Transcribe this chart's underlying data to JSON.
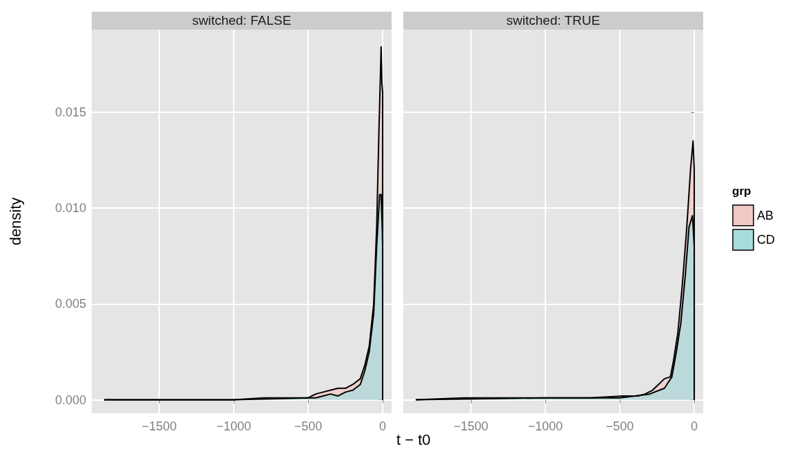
{
  "chart_data": [
    {
      "type": "area",
      "title": "switched: FALSE",
      "xlabel": "t − t0",
      "ylabel": "density",
      "xlim": [
        -1954,
        60
      ],
      "ylim": [
        -0.0007,
        0.0193
      ],
      "xticks": [
        {
          "value": -1500,
          "label": "−1500"
        },
        {
          "value": -1000,
          "label": "−1000"
        },
        {
          "value": -500,
          "label": "−500"
        },
        {
          "value": 0,
          "label": "0"
        }
      ],
      "yticks": [
        {
          "value": 0,
          "label": "0.000"
        },
        {
          "value": 0.005,
          "label": "0.005"
        },
        {
          "value": 0.01,
          "label": "0.010"
        },
        {
          "value": 0.015,
          "label": "0.015"
        }
      ],
      "grid": true,
      "series": [
        {
          "color": "#f1c8c5",
          "x": [
            -1870,
            -1700,
            -1500,
            -1200,
            -1000,
            -800,
            -600,
            -500,
            -450,
            -400,
            -350,
            -300,
            -250,
            -200,
            -150,
            -120,
            -90,
            -60,
            -40,
            -25,
            -10,
            -5,
            0,
            0
          ],
          "values": [
            0,
            0,
            0,
            0,
            0,
            0.0001,
            0.0001,
            0.0001,
            0.0003,
            0.0004,
            0.0005,
            0.0006,
            0.0006,
            0.0008,
            0.0011,
            0.0018,
            0.0028,
            0.005,
            0.009,
            0.014,
            0.0184,
            0.0165,
            0.016,
            0
          ]
        },
        {
          "color": "#a9dcdd",
          "x": [
            -1870,
            -1000,
            -500,
            -450,
            -400,
            -350,
            -300,
            -250,
            -200,
            -150,
            -120,
            -90,
            -60,
            -40,
            -20,
            -10,
            -3,
            0,
            0
          ],
          "values": [
            0,
            0,
            0.0001,
            0.0001,
            0.0002,
            0.0003,
            0.0002,
            0.0004,
            0.0005,
            0.0008,
            0.0015,
            0.0025,
            0.0045,
            0.008,
            0.0107,
            0.0107,
            0.009,
            0.008,
            0
          ]
        }
      ]
    },
    {
      "type": "area",
      "title": "switched: TRUE",
      "legend_title": "grp",
      "legend": "right",
      "tick_labels": "x",
      "xlim": [
        -1954,
        60
      ],
      "ylim": [
        -0.0007,
        0.0193
      ],
      "xticks": [
        {
          "value": -1500,
          "label": "−1500"
        },
        {
          "value": -1000,
          "label": "−1000"
        },
        {
          "value": -500,
          "label": "−500"
        },
        {
          "value": 0,
          "label": "0"
        }
      ],
      "yticks": [
        0,
        0.005,
        0.01,
        0.015
      ],
      "grid": true,
      "series": [
        {
          "name": "AB",
          "color": "#f1c8c5",
          "x": [
            -1870,
            -1550,
            -1400,
            -1000,
            -700,
            -480,
            -380,
            -330,
            -280,
            -240,
            -200,
            -160,
            -140,
            -110,
            -80,
            -50,
            -25,
            -8,
            0,
            0
          ],
          "values": [
            0,
            0.0001,
            0.0001,
            0.0001,
            0.0001,
            0.0002,
            0.0002,
            0.0003,
            0.0005,
            0.0008,
            0.0011,
            0.0012,
            0.002,
            0.0035,
            0.006,
            0.009,
            0.012,
            0.0135,
            0.012,
            0
          ]
        },
        {
          "name": "CD",
          "color": "#a9dcdd",
          "x": [
            -1870,
            -1000,
            -500,
            -300,
            -200,
            -150,
            -120,
            -90,
            -60,
            -35,
            -12,
            0,
            0
          ],
          "values": [
            0,
            0.0001,
            0.0001,
            0.0003,
            0.0006,
            0.0012,
            0.0025,
            0.004,
            0.0065,
            0.009,
            0.0096,
            0.008,
            0
          ]
        }
      ]
    }
  ]
}
